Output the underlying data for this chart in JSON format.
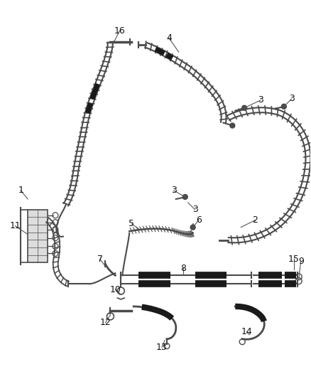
{
  "bg_color": "#ffffff",
  "line_color": "#4a4a4a",
  "dark_color": "#1a1a1a",
  "fig_w": 4.38,
  "fig_h": 5.33,
  "dpi": 100
}
